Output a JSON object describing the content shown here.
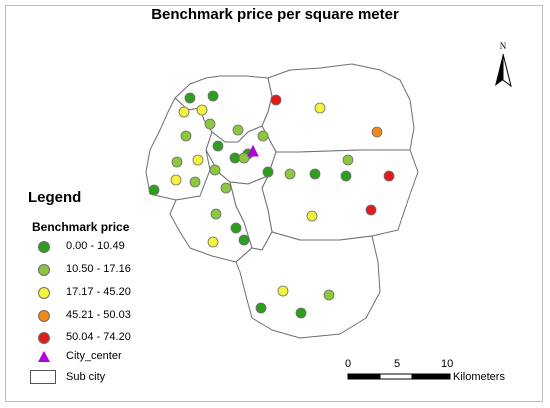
{
  "title": "Benchmark price per square meter",
  "north_label": "N",
  "legend": {
    "title": "Legend",
    "subtitle": "Benchmark price",
    "classes": [
      {
        "label": "0.00 - 10.49",
        "color": "#2e9e1f"
      },
      {
        "label": "10.50 - 17.16",
        "color": "#8dc63f"
      },
      {
        "label": "17.17 - 45.20",
        "color": "#f7f33b"
      },
      {
        "label": "45.21 - 50.03",
        "color": "#f08a1c"
      },
      {
        "label": "50.04 - 74.20",
        "color": "#e31a1c"
      }
    ],
    "city_center_label": "City_center",
    "city_center_color": "#b000d8",
    "subcity_label": "Sub city"
  },
  "scale_bar": {
    "ticks": [
      "0",
      "5",
      "10"
    ],
    "unit": "Kilometers"
  },
  "price_classes_of_points": [
    1,
    1,
    2,
    1,
    2,
    1,
    1,
    2,
    2,
    1,
    3,
    2,
    1,
    2,
    3,
    2,
    1,
    2,
    3,
    2,
    1,
    1,
    2,
    1,
    1,
    1,
    3,
    2,
    4,
    5,
    3,
    2,
    5,
    1,
    1,
    2,
    2,
    1
  ]
}
